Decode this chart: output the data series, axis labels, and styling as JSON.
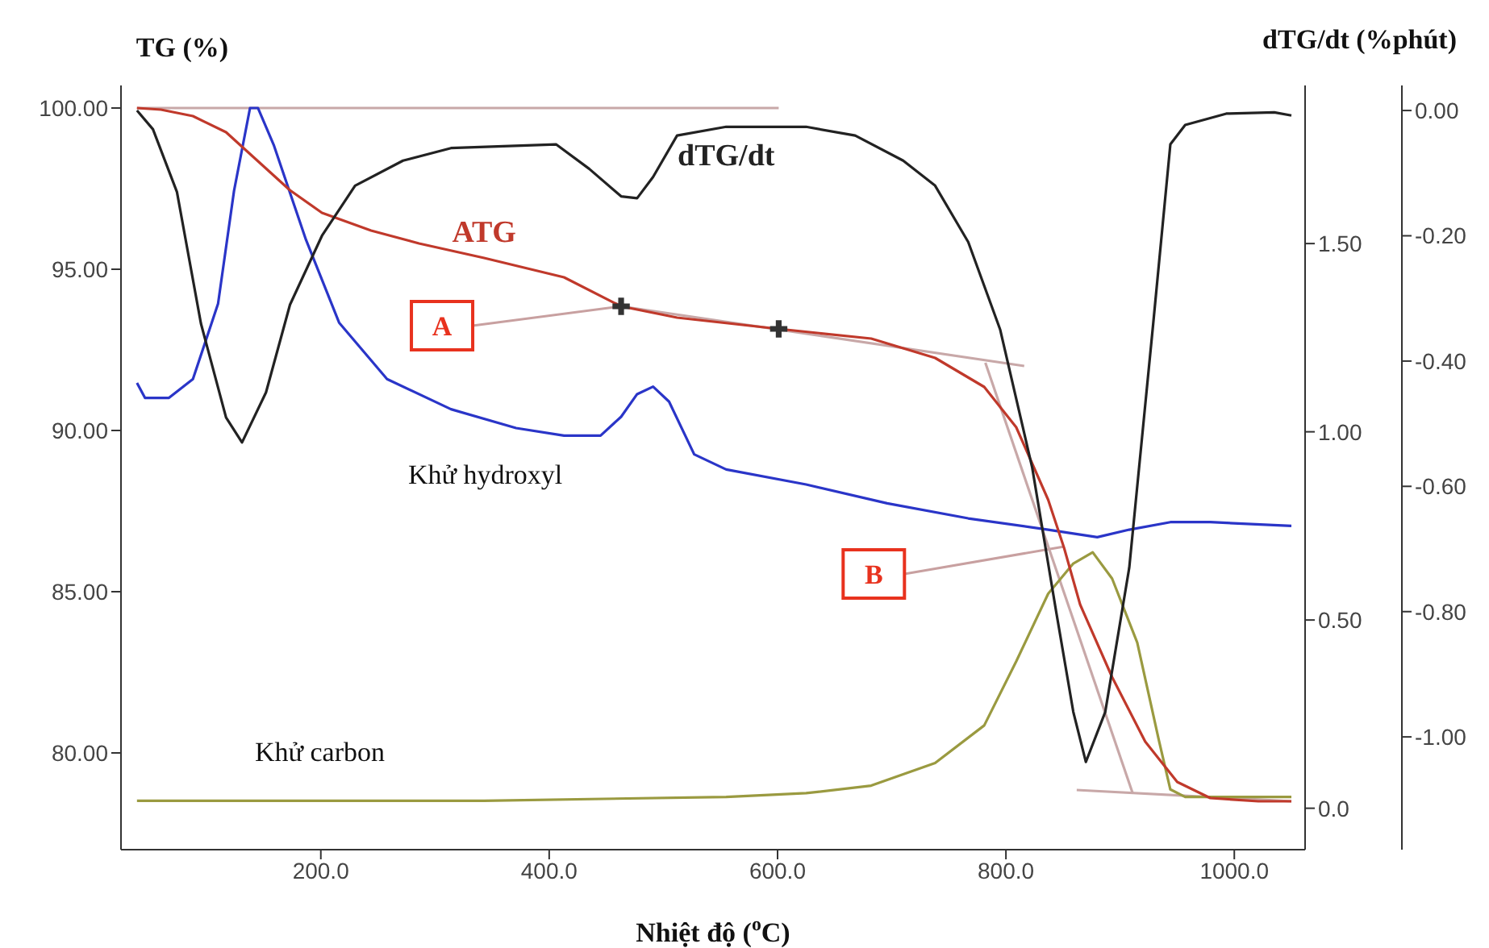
{
  "chart_data": {
    "type": "line",
    "xlabel": "Nhiệt độ ($^{o}$C)",
    "ylabel": "TG (%)",
    "y2label": "dTG/dt (%phút)",
    "xlim": [
      25,
      1062
    ],
    "xticks": [
      {
        "value": 200,
        "label": "200.0"
      },
      {
        "value": 400,
        "label": "400.0"
      },
      {
        "value": 600,
        "label": "600.0"
      },
      {
        "value": 800,
        "label": "800.0"
      },
      {
        "value": 1000,
        "label": "1000.0"
      }
    ],
    "ylim": [
      77,
      100.7
    ],
    "yticks": [
      {
        "value": 80,
        "label": "80.00"
      },
      {
        "value": 85,
        "label": "85.00"
      },
      {
        "value": 90,
        "label": "90.00"
      },
      {
        "value": 95,
        "label": "95.00"
      },
      {
        "value": 100,
        "label": "100.00"
      }
    ],
    "y2lim": [
      -0.11,
      1.92
    ],
    "y2ticks": [
      {
        "value": 0,
        "label": "0.0"
      },
      {
        "value": 0.5,
        "label": "0.50"
      },
      {
        "value": 1,
        "label": "1.00"
      },
      {
        "value": 1.5,
        "label": "1.50"
      }
    ],
    "y3lim": [
      -1.18,
      0.04
    ],
    "y3ticks": [
      {
        "value": -1,
        "label": "-1.00"
      },
      {
        "value": -0.8,
        "label": "-0.80"
      },
      {
        "value": -0.6,
        "label": "-0.60"
      },
      {
        "value": -0.4,
        "label": "-0.40"
      },
      {
        "value": -0.2,
        "label": "-0.20"
      },
      {
        "value": 0,
        "label": "0.00"
      }
    ],
    "annotations": [
      {
        "text": "A",
        "x": 463,
        "y": 93.85
      },
      {
        "text": "B",
        "x": 851,
        "y": 86.4
      },
      "Khử hydroxyl",
      "Khử carbon"
    ],
    "series": [
      {
        "color": "#c8a8a8",
        "x": [
          39,
          601
        ],
        "values": [
          100,
          100
        ]
      },
      {
        "color": "#c8a8a8",
        "x": [
          463,
          816
        ],
        "values": [
          93.85,
          92.0
        ]
      },
      {
        "color": "#c8a8a8",
        "x": [
          782,
          911
        ],
        "values": [
          92.1,
          78.75
        ]
      },
      {
        "color": "#c8a8a8",
        "x": [
          862,
          1050
        ],
        "values": [
          78.85,
          78.5
        ]
      },
      {
        "type": "scatter",
        "marker": "cross",
        "color": "#333333",
        "x": [
          463,
          601
        ],
        "values": [
          93.85,
          93.15
        ]
      },
      {
        "axis": "y2",
        "color": "#2a35c8",
        "x": [
          39,
          46,
          67,
          88,
          110,
          124,
          138,
          145,
          159,
          187,
          216,
          258,
          314,
          371,
          413,
          445,
          463,
          477,
          491,
          505,
          527,
          555,
          625,
          696,
          767,
          837,
          880,
          908,
          944,
          979,
          1050
        ],
        "values": [
          1.13,
          1.09,
          1.09,
          1.14,
          1.34,
          1.64,
          1.86,
          1.86,
          1.76,
          1.51,
          1.29,
          1.14,
          1.06,
          1.01,
          0.99,
          0.99,
          1.04,
          1.1,
          1.12,
          1.08,
          0.94,
          0.9,
          0.86,
          0.81,
          0.77,
          0.74,
          0.72,
          0.74,
          0.76,
          0.76,
          0.75
        ]
      },
      {
        "axis": "y2",
        "color": "#9a9a40",
        "x": [
          39,
          343,
          555,
          625,
          682,
          738,
          781,
          809,
          837,
          859,
          876,
          893,
          915,
          934,
          944,
          957,
          1050
        ],
        "values": [
          0.02,
          0.02,
          0.03,
          0.04,
          0.06,
          0.12,
          0.22,
          0.39,
          0.57,
          0.65,
          0.68,
          0.61,
          0.44,
          0.18,
          0.05,
          0.03,
          0.03
        ]
      },
      {
        "name": "ATG",
        "color": "#c0392b",
        "x": [
          39,
          60,
          88,
          117,
          145,
          173,
          201,
          244,
          286,
          343,
          413,
          463,
          512,
          601,
          682,
          738,
          781,
          809,
          837,
          851,
          865,
          893,
          922,
          950,
          979,
          1021,
          1050
        ],
        "values": [
          100,
          99.95,
          99.75,
          99.25,
          98.35,
          97.45,
          96.75,
          96.2,
          95.8,
          95.35,
          94.75,
          93.85,
          93.5,
          93.15,
          92.85,
          92.25,
          91.35,
          90.1,
          87.85,
          86.35,
          84.6,
          82.35,
          80.35,
          79.1,
          78.6,
          78.5,
          78.5
        ]
      },
      {
        "name": "dTG/dt",
        "axis": "y3",
        "color": "#222222",
        "x": [
          39,
          53,
          74,
          95,
          117,
          131,
          152,
          173,
          201,
          230,
          272,
          314,
          406,
          435,
          463,
          477,
          491,
          512,
          555,
          625,
          668,
          710,
          738,
          767,
          795,
          823,
          844,
          859,
          870,
          887,
          908,
          929,
          944,
          957,
          993,
          1035,
          1050
        ],
        "values": [
          0,
          -0.03,
          -0.13,
          -0.34,
          -0.49,
          -0.53,
          -0.45,
          -0.31,
          -0.2,
          -0.12,
          -0.08,
          -0.06,
          -0.054,
          -0.093,
          -0.137,
          -0.14,
          -0.106,
          -0.04,
          -0.026,
          -0.026,
          -0.04,
          -0.08,
          -0.12,
          -0.21,
          -0.35,
          -0.57,
          -0.8,
          -0.96,
          -1.04,
          -0.96,
          -0.73,
          -0.34,
          -0.054,
          -0.023,
          -0.005,
          -0.003,
          -0.008
        ]
      }
    ]
  }
}
